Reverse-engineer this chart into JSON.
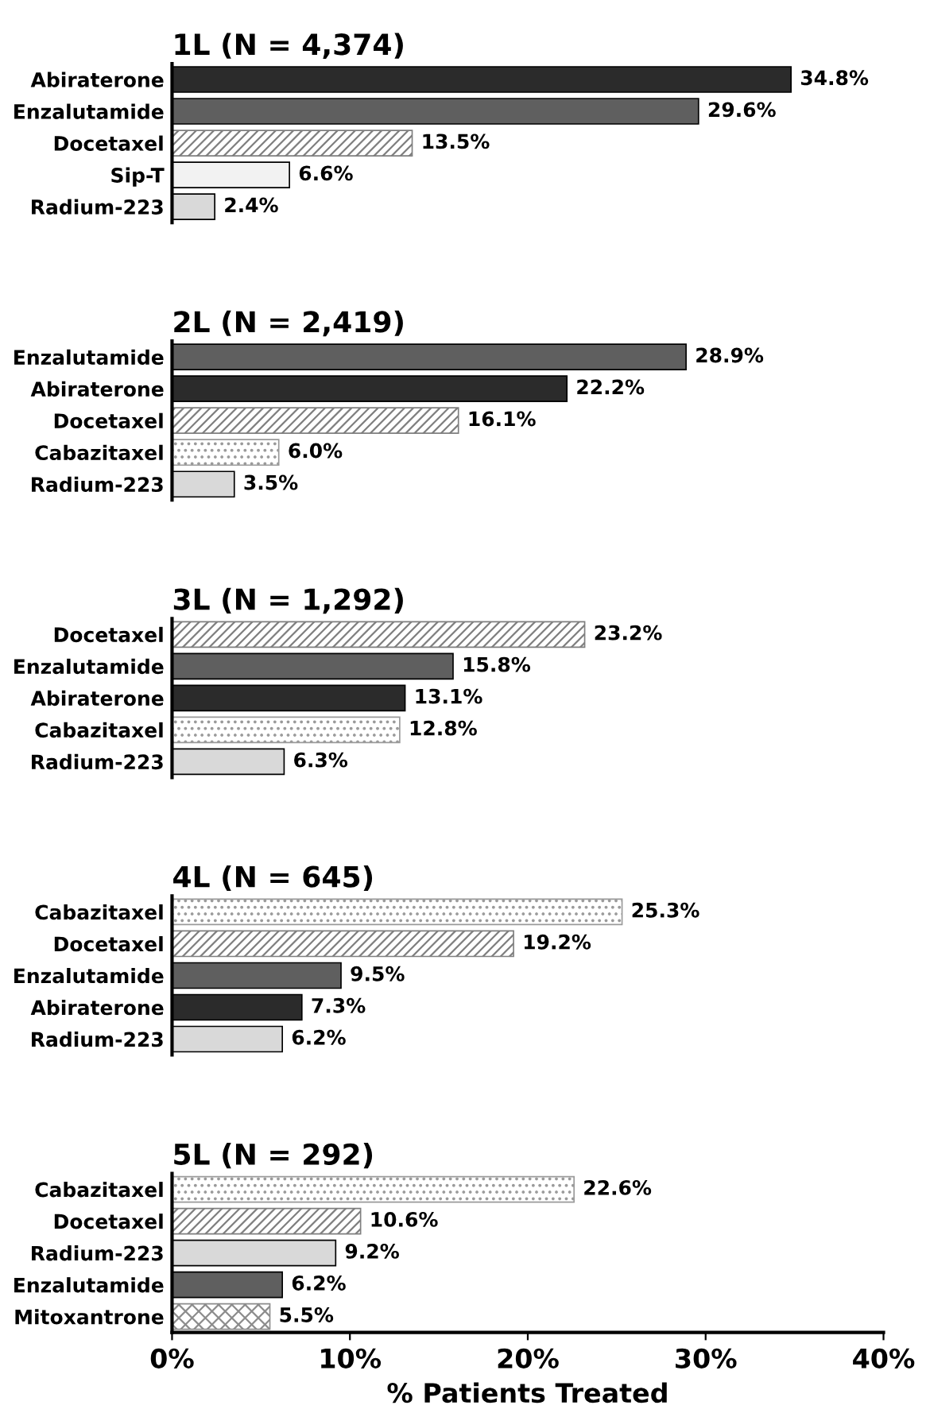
{
  "chart_data": [
    {
      "type": "bar",
      "orientation": "horizontal",
      "title": "1L (N = 4,374)",
      "categories": [
        "Abiraterone",
        "Enzalutamide",
        "Docetaxel",
        "Sip-T",
        "Radium-223"
      ],
      "values": [
        34.8,
        29.6,
        13.5,
        6.6,
        2.4
      ],
      "value_labels": [
        "34.8%",
        "29.6%",
        "13.5%",
        "6.6%",
        "2.4%"
      ],
      "colors": [
        "#2b2b2b",
        "#5f5f5f",
        "#7f7f7f",
        "#f2f2f2",
        "#d9d9d9"
      ],
      "xlim": [
        0,
        40
      ],
      "tick_labels": "y"
    },
    {
      "type": "bar",
      "orientation": "horizontal",
      "title": "2L (N = 2,419)",
      "categories": [
        "Enzalutamide",
        "Abiraterone",
        "Docetaxel",
        "Cabazitaxel",
        "Radium-223"
      ],
      "values": [
        28.9,
        22.2,
        16.1,
        6.0,
        3.5
      ],
      "value_labels": [
        "28.9%",
        "22.2%",
        "16.1%",
        "6.0%",
        "3.5%"
      ],
      "colors": [
        "#5f5f5f",
        "#2b2b2b",
        "#7f7f7f",
        "#9a9a9a",
        "#d9d9d9"
      ],
      "xlim": [
        0,
        40
      ],
      "tick_labels": "y"
    },
    {
      "type": "bar",
      "orientation": "horizontal",
      "title": "3L (N = 1,292)",
      "categories": [
        "Docetaxel",
        "Enzalutamide",
        "Abiraterone",
        "Cabazitaxel",
        "Radium-223"
      ],
      "values": [
        23.2,
        15.8,
        13.1,
        12.8,
        6.3
      ],
      "value_labels": [
        "23.2%",
        "15.8%",
        "13.1%",
        "12.8%",
        "6.3%"
      ],
      "colors": [
        "#7f7f7f",
        "#5f5f5f",
        "#2b2b2b",
        "#9a9a9a",
        "#d9d9d9"
      ],
      "xlim": [
        0,
        40
      ],
      "tick_labels": "y"
    },
    {
      "type": "bar",
      "orientation": "horizontal",
      "title": "4L (N = 645)",
      "categories": [
        "Cabazitaxel",
        "Docetaxel",
        "Enzalutamide",
        "Abiraterone",
        "Radium-223"
      ],
      "values": [
        25.3,
        19.2,
        9.5,
        7.3,
        6.2
      ],
      "value_labels": [
        "25.3%",
        "19.2%",
        "9.5%",
        "7.3%",
        "6.2%"
      ],
      "colors": [
        "#9a9a9a",
        "#7f7f7f",
        "#5f5f5f",
        "#2b2b2b",
        "#d9d9d9"
      ],
      "xlim": [
        0,
        40
      ],
      "tick_labels": "y"
    },
    {
      "type": "bar",
      "orientation": "horizontal",
      "title": "5L (N = 292)",
      "categories": [
        "Cabazitaxel",
        "Docetaxel",
        "Radium-223",
        "Enzalutamide",
        "Mitoxantrone"
      ],
      "values": [
        22.6,
        10.6,
        9.2,
        6.2,
        5.5
      ],
      "value_labels": [
        "22.6%",
        "10.6%",
        "9.2%",
        "6.2%",
        "5.5%"
      ],
      "colors": [
        "#9a9a9a",
        "#7f7f7f",
        "#d9d9d9",
        "#5f5f5f",
        "#8c8c8c"
      ],
      "xlim": [
        0,
        40
      ],
      "xticks": [
        {
          "value": 0,
          "label": "0%"
        },
        {
          "value": 10,
          "label": "10%"
        },
        {
          "value": 20,
          "label": "20%"
        },
        {
          "value": 30,
          "label": "30%"
        },
        {
          "value": 40,
          "label": "40%"
        }
      ],
      "xlabel": "% Patients Treated"
    }
  ]
}
